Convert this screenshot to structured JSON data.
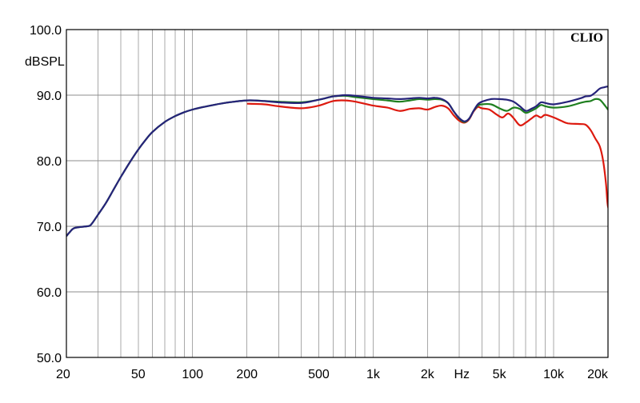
{
  "chart_data": {
    "type": "line",
    "brand": "CLIO",
    "ylabel": "dBSPL",
    "xunit": "Hz",
    "xscale": "log",
    "xlim": [
      20,
      20000
    ],
    "ylim": [
      50,
      100
    ],
    "grid": true,
    "y_ticks": [
      {
        "value": 100,
        "label": "100.0"
      },
      {
        "value": 90,
        "label": "90.0"
      },
      {
        "value": 80,
        "label": "80.0"
      },
      {
        "value": 70,
        "label": "70.0"
      },
      {
        "value": 60,
        "label": "60.0"
      },
      {
        "value": 50,
        "label": "50.0"
      }
    ],
    "x_ticks": [
      {
        "value": 20,
        "label": "20"
      },
      {
        "value": 50,
        "label": "50"
      },
      {
        "value": 100,
        "label": "100"
      },
      {
        "value": 200,
        "label": "200"
      },
      {
        "value": 500,
        "label": "500"
      },
      {
        "value": 1000,
        "label": "1k"
      },
      {
        "value": 2000,
        "label": "2k"
      },
      {
        "value": 5000,
        "label": "5k"
      },
      {
        "value": 10000,
        "label": "10k"
      },
      {
        "value": 20000,
        "label": "20k"
      }
    ],
    "series": [
      {
        "color": "#dd1a0f",
        "points": [
          [
            200,
            88.7
          ],
          [
            250,
            88.6
          ],
          [
            300,
            88.3
          ],
          [
            400,
            88.0
          ],
          [
            500,
            88.4
          ],
          [
            600,
            89.1
          ],
          [
            700,
            89.2
          ],
          [
            800,
            89.0
          ],
          [
            1000,
            88.4
          ],
          [
            1200,
            88.1
          ],
          [
            1400,
            87.6
          ],
          [
            1600,
            87.9
          ],
          [
            1800,
            88.0
          ],
          [
            2000,
            87.8
          ],
          [
            2200,
            88.2
          ],
          [
            2400,
            88.4
          ],
          [
            2600,
            88.0
          ],
          [
            2800,
            86.9
          ],
          [
            3000,
            86.1
          ],
          [
            3200,
            85.8
          ],
          [
            3400,
            86.3
          ],
          [
            3600,
            87.5
          ],
          [
            3800,
            88.2
          ],
          [
            4000,
            88.0
          ],
          [
            4400,
            87.8
          ],
          [
            4800,
            87.1
          ],
          [
            5200,
            86.6
          ],
          [
            5600,
            87.2
          ],
          [
            6000,
            86.5
          ],
          [
            6500,
            85.4
          ],
          [
            7000,
            85.8
          ],
          [
            7500,
            86.4
          ],
          [
            8000,
            86.9
          ],
          [
            8500,
            86.6
          ],
          [
            9000,
            87.0
          ],
          [
            10000,
            86.6
          ],
          [
            11000,
            86.1
          ],
          [
            12000,
            85.7
          ],
          [
            14000,
            85.6
          ],
          [
            15000,
            85.5
          ],
          [
            16000,
            84.7
          ],
          [
            17000,
            83.4
          ],
          [
            18000,
            82.2
          ],
          [
            18800,
            80.0
          ],
          [
            19500,
            76.5
          ],
          [
            20000,
            73.0
          ],
          [
            21000,
            72.3
          ],
          [
            21500,
            71.8
          ]
        ]
      },
      {
        "color": "#1f7f1f",
        "points": [
          [
            20,
            68.5
          ],
          [
            21,
            69.2
          ],
          [
            22,
            69.7
          ],
          [
            24,
            69.9
          ],
          [
            26,
            70.0
          ],
          [
            27,
            70.1
          ],
          [
            28,
            70.6
          ],
          [
            30,
            71.8
          ],
          [
            33,
            73.5
          ],
          [
            36,
            75.3
          ],
          [
            40,
            77.5
          ],
          [
            45,
            79.8
          ],
          [
            50,
            81.7
          ],
          [
            55,
            83.2
          ],
          [
            60,
            84.4
          ],
          [
            70,
            85.9
          ],
          [
            80,
            86.8
          ],
          [
            90,
            87.4
          ],
          [
            100,
            87.8
          ],
          [
            120,
            88.3
          ],
          [
            150,
            88.8
          ],
          [
            200,
            89.2
          ],
          [
            250,
            89.1
          ],
          [
            300,
            89.0
          ],
          [
            400,
            88.9
          ],
          [
            500,
            89.3
          ],
          [
            600,
            89.8
          ],
          [
            700,
            89.9
          ],
          [
            800,
            89.7
          ],
          [
            1000,
            89.4
          ],
          [
            1200,
            89.2
          ],
          [
            1400,
            89.0
          ],
          [
            1600,
            89.2
          ],
          [
            1800,
            89.4
          ],
          [
            2000,
            89.3
          ],
          [
            2200,
            89.4
          ],
          [
            2400,
            89.3
          ],
          [
            2600,
            88.8
          ],
          [
            2800,
            87.5
          ],
          [
            3000,
            86.4
          ],
          [
            3200,
            85.9
          ],
          [
            3400,
            86.4
          ],
          [
            3600,
            87.6
          ],
          [
            3800,
            88.4
          ],
          [
            4000,
            88.6
          ],
          [
            4500,
            88.6
          ],
          [
            5000,
            88.0
          ],
          [
            5500,
            87.6
          ],
          [
            6000,
            88.1
          ],
          [
            6500,
            87.9
          ],
          [
            7000,
            87.3
          ],
          [
            7500,
            87.6
          ],
          [
            8000,
            88.0
          ],
          [
            8500,
            88.5
          ],
          [
            9000,
            88.3
          ],
          [
            10000,
            88.1
          ],
          [
            12000,
            88.3
          ],
          [
            14000,
            88.8
          ],
          [
            15000,
            89.0
          ],
          [
            16000,
            89.1
          ],
          [
            17000,
            89.4
          ],
          [
            18000,
            89.3
          ],
          [
            19000,
            88.6
          ],
          [
            20000,
            87.8
          ],
          [
            21000,
            87.2
          ],
          [
            21500,
            86.8
          ]
        ]
      },
      {
        "color": "#26237a",
        "points": [
          [
            20,
            68.5
          ],
          [
            21,
            69.2
          ],
          [
            22,
            69.7
          ],
          [
            24,
            69.9
          ],
          [
            26,
            70.0
          ],
          [
            27,
            70.1
          ],
          [
            28,
            70.6
          ],
          [
            30,
            71.8
          ],
          [
            33,
            73.5
          ],
          [
            36,
            75.3
          ],
          [
            40,
            77.5
          ],
          [
            45,
            79.8
          ],
          [
            50,
            81.7
          ],
          [
            55,
            83.2
          ],
          [
            60,
            84.4
          ],
          [
            70,
            85.9
          ],
          [
            80,
            86.8
          ],
          [
            90,
            87.4
          ],
          [
            100,
            87.8
          ],
          [
            120,
            88.3
          ],
          [
            150,
            88.8
          ],
          [
            200,
            89.2
          ],
          [
            250,
            89.1
          ],
          [
            300,
            88.9
          ],
          [
            400,
            88.8
          ],
          [
            500,
            89.3
          ],
          [
            600,
            89.8
          ],
          [
            700,
            90.0
          ],
          [
            800,
            89.9
          ],
          [
            1000,
            89.6
          ],
          [
            1200,
            89.5
          ],
          [
            1400,
            89.4
          ],
          [
            1600,
            89.5
          ],
          [
            1800,
            89.6
          ],
          [
            2000,
            89.5
          ],
          [
            2200,
            89.6
          ],
          [
            2400,
            89.4
          ],
          [
            2600,
            88.8
          ],
          [
            2800,
            87.5
          ],
          [
            3000,
            86.5
          ],
          [
            3200,
            86.0
          ],
          [
            3400,
            86.4
          ],
          [
            3600,
            87.6
          ],
          [
            3800,
            88.6
          ],
          [
            4000,
            89.0
          ],
          [
            4500,
            89.4
          ],
          [
            5000,
            89.4
          ],
          [
            5500,
            89.3
          ],
          [
            6000,
            89.0
          ],
          [
            6500,
            88.3
          ],
          [
            7000,
            87.6
          ],
          [
            7500,
            87.9
          ],
          [
            8000,
            88.3
          ],
          [
            8500,
            88.9
          ],
          [
            9000,
            88.8
          ],
          [
            10000,
            88.6
          ],
          [
            12000,
            89.0
          ],
          [
            14000,
            89.5
          ],
          [
            15000,
            89.8
          ],
          [
            16000,
            89.9
          ],
          [
            17000,
            90.4
          ],
          [
            18000,
            91.0
          ],
          [
            19000,
            91.2
          ],
          [
            20000,
            91.3
          ],
          [
            21000,
            91.0
          ],
          [
            21500,
            90.7
          ]
        ]
      }
    ]
  }
}
